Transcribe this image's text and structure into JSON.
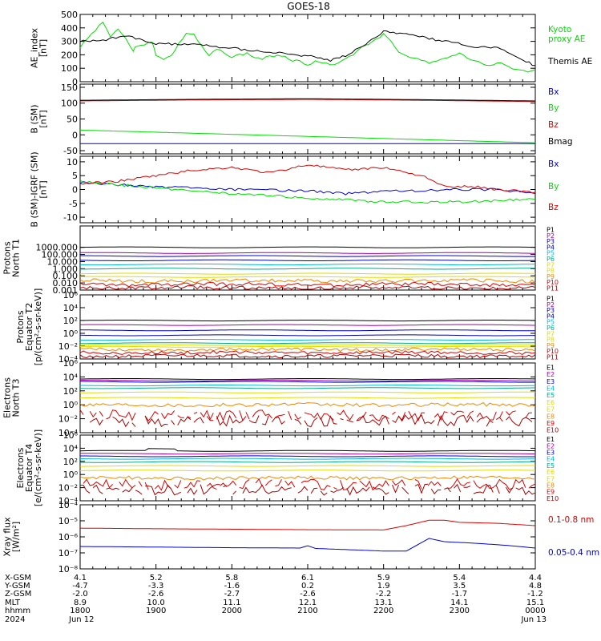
{
  "title": "GOES-18",
  "colors": {
    "black": "#000000",
    "green": "#00dd00",
    "blue": "#0000dd",
    "red": "#dd0000",
    "darkred": "#aa0000",
    "navy": "#0000aa",
    "cyan": "#00b8d8",
    "teal": "#00aa88",
    "yellow": "#dddd00",
    "orange": "#ee8800",
    "purple": "#aa00aa"
  },
  "chart_data": [
    {
      "type": "line",
      "id": "ae",
      "ylabel": [
        "AE_index",
        "[nT]"
      ],
      "ylim": [
        0,
        500
      ],
      "yticks": [
        0,
        100,
        200,
        300,
        400,
        500
      ],
      "ytick_labels": [
        "0",
        "100",
        "200",
        "300",
        "400",
        "500"
      ],
      "series": [
        {
          "name": "Kyoto proxy AE",
          "legend": [
            "Kyoto",
            "proxy AE"
          ],
          "color": "#00dd00",
          "x": [
            0,
            0.1,
            0.2,
            0.3,
            0.4,
            0.5,
            0.6,
            0.7,
            0.75,
            0.85,
            0.95,
            1.0,
            1.1,
            1.2,
            1.3,
            1.4,
            1.5,
            1.6,
            1.7,
            1.8,
            1.9,
            2.0,
            2.1,
            2.2,
            2.3,
            2.4,
            2.5,
            2.6,
            2.7,
            2.8,
            2.9,
            3.0,
            3.1,
            3.2,
            3.3,
            3.4,
            3.5,
            3.6,
            3.7,
            3.8,
            3.9,
            4.0,
            4.1,
            4.2,
            4.3,
            4.4,
            4.5,
            4.6,
            4.7,
            4.8,
            4.9,
            5.0,
            5.1,
            5.2,
            5.3,
            5.4,
            5.5,
            5.6,
            5.7,
            5.8,
            5.9,
            6.0
          ],
          "y": [
            250,
            330,
            380,
            450,
            330,
            400,
            320,
            230,
            270,
            280,
            290,
            200,
            170,
            190,
            280,
            360,
            350,
            260,
            190,
            240,
            220,
            180,
            200,
            210,
            180,
            170,
            185,
            200,
            190,
            160,
            150,
            130,
            150,
            140,
            120,
            130,
            180,
            200,
            260,
            280,
            320,
            350,
            300,
            220,
            200,
            170,
            160,
            140,
            150,
            170,
            200,
            210,
            180,
            160,
            130,
            120,
            140,
            130,
            100,
            90,
            80,
            90
          ]
        },
        {
          "name": "Themis AE",
          "legend": [
            "Themis AE"
          ],
          "color": "#000000",
          "x": [
            0,
            0.3,
            0.6,
            1.0,
            1.5,
            2.0,
            2.5,
            3.0,
            3.3,
            3.5,
            3.8,
            4.0,
            4.3,
            4.6,
            4.9,
            5.2,
            5.5,
            5.8,
            6.0
          ],
          "y": [
            300,
            310,
            340,
            280,
            280,
            250,
            220,
            190,
            160,
            190,
            290,
            370,
            360,
            320,
            290,
            260,
            250,
            170,
            120
          ]
        }
      ]
    },
    {
      "type": "line",
      "id": "bsm",
      "ylabel": [
        "B (SM)",
        "[nT]"
      ],
      "ylim": [
        -60,
        160
      ],
      "yticks": [
        -50,
        0,
        50,
        100,
        150
      ],
      "ytick_labels": [
        "-50",
        "0",
        "50",
        "100",
        "150"
      ],
      "series": [
        {
          "name": "Bx",
          "color": "#0000dd",
          "x": [
            0,
            6
          ],
          "y": [
            -28,
            -28
          ]
        },
        {
          "name": "By",
          "color": "#00dd00",
          "x": [
            0,
            6
          ],
          "y": [
            15,
            -25
          ]
        },
        {
          "name": "Bz",
          "color": "#dd0000",
          "x": [
            0,
            1.5,
            3,
            4.5,
            6
          ],
          "y": [
            107,
            110,
            112,
            109,
            105
          ]
        },
        {
          "name": "Bmag",
          "color": "#000000",
          "x": [
            0,
            1.5,
            3,
            4.5,
            6
          ],
          "y": [
            109,
            112,
            114,
            111,
            107
          ]
        }
      ]
    },
    {
      "type": "line",
      "id": "bigrf",
      "ylabel": [
        "B (SM)-IGRF (SM)",
        "[nT]"
      ],
      "ylim": [
        -12,
        12
      ],
      "yticks": [
        -10,
        -5,
        0,
        5,
        10
      ],
      "ytick_labels": [
        "-10",
        "-5",
        "0",
        "5",
        "10"
      ],
      "series": [
        {
          "name": "Bx",
          "color": "#0000dd",
          "x": [
            0,
            1,
            2,
            3,
            3.5,
            4,
            4.5,
            5,
            5.5,
            6
          ],
          "y": [
            2.5,
            1,
            0,
            -0.5,
            -1.5,
            -0.5,
            -0.5,
            0,
            0,
            -1.5
          ]
        },
        {
          "name": "By",
          "color": "#00dd00",
          "x": [
            0,
            1,
            2,
            3,
            4,
            5,
            6
          ],
          "y": [
            3,
            0.5,
            -1.5,
            -3,
            -4.5,
            -4.5,
            -3.5
          ]
        },
        {
          "name": "Bz",
          "color": "#dd0000",
          "x": [
            0,
            0.5,
            1,
            1.5,
            2,
            2.5,
            3,
            3.5,
            4,
            4.5,
            4.8,
            5.2,
            5.5,
            5.8,
            6
          ],
          "y": [
            2,
            3,
            5,
            7,
            8,
            6,
            9,
            7,
            8,
            5,
            1,
            1,
            0,
            -0.5,
            -1
          ]
        }
      ]
    },
    {
      "type": "line",
      "id": "protons_t1",
      "ylabel": [
        "Protons",
        "North T1"
      ],
      "yscale": "log",
      "ylim": [
        0.001,
        1000000
      ],
      "ytick_labels": [
        "0.001",
        "0.010",
        "0.100",
        "1.000",
        "10.000",
        "100.000",
        "1000.000"
      ],
      "yticks": [
        0.001,
        0.01,
        0.1,
        1,
        10,
        100,
        1000
      ],
      "channels": [
        "P1",
        "P2",
        "P3",
        "P4",
        "P5",
        "P6",
        "P7",
        "P8",
        "P9",
        "P10",
        "P11"
      ],
      "channel_colors": [
        "#000000",
        "#aa00aa",
        "#0000dd",
        "#0000aa",
        "#00b8d8",
        "#00aa88",
        "#dddd00",
        "#dddd00",
        "#ee8800",
        "#dd0000",
        "#aa0000"
      ],
      "channel_levels": [
        1000,
        160,
        60,
        15,
        4,
        1,
        0.2,
        0.07,
        0.02,
        0.006,
        0.002
      ]
    },
    {
      "type": "line",
      "id": "protons_t2",
      "ylabel": [
        "Protons",
        "Equator T2",
        "[p/(cm²-s-sr-keV)]"
      ],
      "yscale": "log",
      "ylim": [
        0.0001,
        1000000
      ],
      "ytick_labels": [
        "10⁻⁴",
        "10⁻²",
        "10⁰",
        "10²",
        "10⁴",
        "10⁶"
      ],
      "yticks": [
        0.0001,
        0.01,
        1,
        100,
        10000,
        1000000
      ],
      "channels": [
        "P1",
        "P2",
        "P3",
        "P4",
        "P5",
        "P6",
        "P7",
        "P8",
        "P9",
        "P10",
        "P11"
      ],
      "channel_colors": [
        "#000000",
        "#aa00aa",
        "#0000dd",
        "#0000aa",
        "#00b8d8",
        "#00aa88",
        "#dddd00",
        "#dddd00",
        "#ee8800",
        "#dd0000",
        "#aa0000"
      ],
      "channel_levels": [
        100,
        20,
        3,
        0.5,
        0.1,
        0.03,
        0.015,
        0.008,
        0.003,
        0.001,
        0.0003
      ]
    },
    {
      "type": "line",
      "id": "electrons_t3",
      "ylabel": [
        "Electrons",
        "North T3"
      ],
      "yscale": "log",
      "ylim": [
        0.0001,
        1000000
      ],
      "ytick_labels": [
        "10⁻⁴",
        "10⁻²",
        "10⁰",
        "10²",
        "10⁴",
        "10⁶"
      ],
      "yticks": [
        0.0001,
        0.01,
        1,
        100,
        10000,
        1000000
      ],
      "channels": [
        "E1",
        "E2",
        "E3",
        "E4",
        "E5",
        "E6",
        "E7",
        "E8",
        "E9",
        "E10"
      ],
      "channel_colors": [
        "#000000",
        "#aa00aa",
        "#0000dd",
        "#00b8d8",
        "#00aa88",
        "#dddd00",
        "#dddd00",
        "#ee8800",
        "#dd0000",
        "#aa0000"
      ],
      "channel_levels": [
        5000,
        3000,
        2000,
        600,
        250,
        60,
        10,
        1,
        0.03,
        0.005
      ]
    },
    {
      "type": "line",
      "id": "electrons_t4",
      "ylabel": [
        "Electrons",
        "Equator T4",
        "[e/(cm²-s-sr-keV)]"
      ],
      "yscale": "log",
      "ylim": [
        0.0001,
        1000000
      ],
      "ytick_labels": [
        "10⁻⁴",
        "10⁻²",
        "10⁰",
        "10²",
        "10⁴",
        "10⁶"
      ],
      "yticks": [
        0.0001,
        0.01,
        1,
        100,
        10000,
        1000000
      ],
      "channels": [
        "E1",
        "E2",
        "E3",
        "E4",
        "E5",
        "E6",
        "E7",
        "E8",
        "E9",
        "E10"
      ],
      "channel_colors": [
        "#000000",
        "#aa00aa",
        "#0000dd",
        "#00b8d8",
        "#00aa88",
        "#dddd00",
        "#dddd00",
        "#ee8800",
        "#dd0000",
        "#aa0000"
      ],
      "channel_levels": [
        4000,
        1500,
        600,
        250,
        80,
        20,
        4,
        0.3,
        0.03,
        0.005
      ]
    },
    {
      "type": "line",
      "id": "xray",
      "ylabel": [
        "Xray flux",
        "[W/m²]"
      ],
      "yscale": "log",
      "ylim": [
        1e-08,
        0.0001
      ],
      "ytick_labels": [
        "10⁻⁸",
        "10⁻⁷",
        "10⁻⁶",
        "10⁻⁵",
        "10⁻⁴"
      ],
      "yticks": [
        1e-08,
        1e-07,
        1e-06,
        1e-05,
        0.0001
      ],
      "series": [
        {
          "name": "0.1-0.8 nm",
          "color": "#dd0000",
          "x": [
            0,
            1,
            2,
            3,
            4,
            4.3,
            4.6,
            4.8,
            5.0,
            5.5,
            6
          ],
          "y": [
            3.5e-06,
            3.2e-06,
            3e-06,
            2.8e-06,
            2.7e-06,
            5e-06,
            1.1e-05,
            1.1e-05,
            8e-06,
            7e-06,
            5e-06
          ]
        },
        {
          "name": "0.05-0.4 nm",
          "color": "#0000dd",
          "x": [
            0,
            1,
            2,
            2.9,
            3.0,
            3.1,
            4.0,
            4.3,
            4.6,
            4.8,
            5.2,
            5.6,
            6
          ],
          "y": [
            2.5e-07,
            2.3e-07,
            2.1e-07,
            2e-07,
            2.8e-07,
            1.9e-07,
            1.3e-07,
            1.3e-07,
            8e-07,
            5e-07,
            4e-07,
            3e-07,
            2e-07
          ]
        }
      ]
    }
  ],
  "x_axis": {
    "row_labels": [
      "X-GSM",
      "Y-GSM",
      "Z-GSM",
      "MLT",
      "hhmm",
      "2024"
    ],
    "columns": [
      {
        "values": [
          "4.1",
          "-4.7",
          "-2.0",
          "8.9",
          "1800",
          "Jun 12"
        ]
      },
      {
        "values": [
          "5.2",
          "-3.3",
          "-2.6",
          "10.0",
          "1900",
          ""
        ]
      },
      {
        "values": [
          "5.8",
          "-1.6",
          "-2.7",
          "11.1",
          "2000",
          ""
        ]
      },
      {
        "values": [
          "6.1",
          "0.2",
          "-2.6",
          "12.1",
          "2100",
          ""
        ]
      },
      {
        "values": [
          "5.9",
          "1.9",
          "-2.2",
          "13.1",
          "2200",
          ""
        ]
      },
      {
        "values": [
          "5.4",
          "3.5",
          "-1.7",
          "14.1",
          "2300",
          ""
        ]
      },
      {
        "values": [
          "4.4",
          "4.8",
          "-1.2",
          "15.1",
          "0000",
          "Jun 13"
        ]
      }
    ]
  }
}
